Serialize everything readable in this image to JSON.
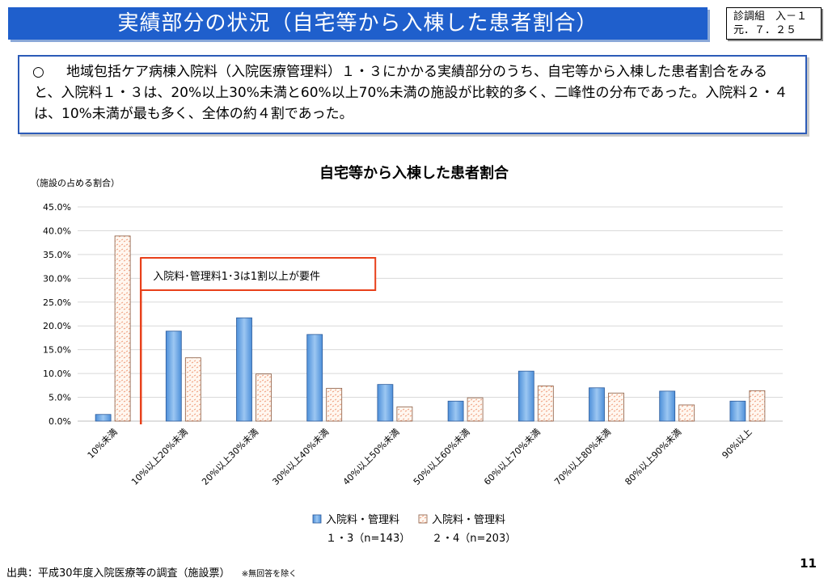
{
  "header": {
    "title": "実績部分の状況（自宅等から入棟した患者割合）",
    "doc_code_line1": "診調組　入－１",
    "doc_code_line2": "元．７．２５"
  },
  "summary": {
    "bullet": "○",
    "text": "地域包括ケア病棟入院料（入院医療管理料）１・３にかかる実績部分のうち、自宅等から入棟した患者割合をみると、入院料１・３は、20%以上30%未満と60%以上70%未満の施設が比較的多く、二峰性の分布であった。入院料２・４は、10%未満が最も多く、全体の約４割であった。"
  },
  "chart_data": {
    "type": "bar",
    "title": "自宅等から入棟した患者割合",
    "ylabel": "（施設の占める割合）",
    "ylim": [
      0,
      45
    ],
    "yticks": [
      "0.0%",
      "5.0%",
      "10.0%",
      "15.0%",
      "20.0%",
      "25.0%",
      "30.0%",
      "35.0%",
      "40.0%",
      "45.0%"
    ],
    "categories": [
      "10%未満",
      "10%以上20%未満",
      "20%以上30%未満",
      "30%以上40%未満",
      "40%以上50%未満",
      "50%以上60%未満",
      "60%以上70%未満",
      "70%以上80%未満",
      "80%以上90%未満",
      "90%以上"
    ],
    "series": [
      {
        "name": "入院料・管理料１・３（n=143）",
        "legend_line1": "入院料・管理料",
        "legend_line2": "１・3（n=143）",
        "color": "#6fa8e8",
        "values": [
          1.4,
          18.9,
          21.7,
          18.2,
          7.7,
          4.2,
          10.5,
          7.0,
          6.3,
          4.2
        ]
      },
      {
        "name": "入院料・管理料２・４（n=203）",
        "legend_line1": "入院料・管理料",
        "legend_line2": "２・4（n=203）",
        "color": "#f0a080",
        "values": [
          38.9,
          13.3,
          9.9,
          6.9,
          3.0,
          4.9,
          7.4,
          5.9,
          3.4,
          6.4
        ]
      }
    ],
    "annotation": "入院料･管理料1･3は1割以上が要件",
    "grid": true,
    "legend": "bottom"
  },
  "footer": {
    "source": "出典：平成30年度入院医療等の調査（施設票）",
    "note": "※無回答を除く",
    "page": "11"
  }
}
